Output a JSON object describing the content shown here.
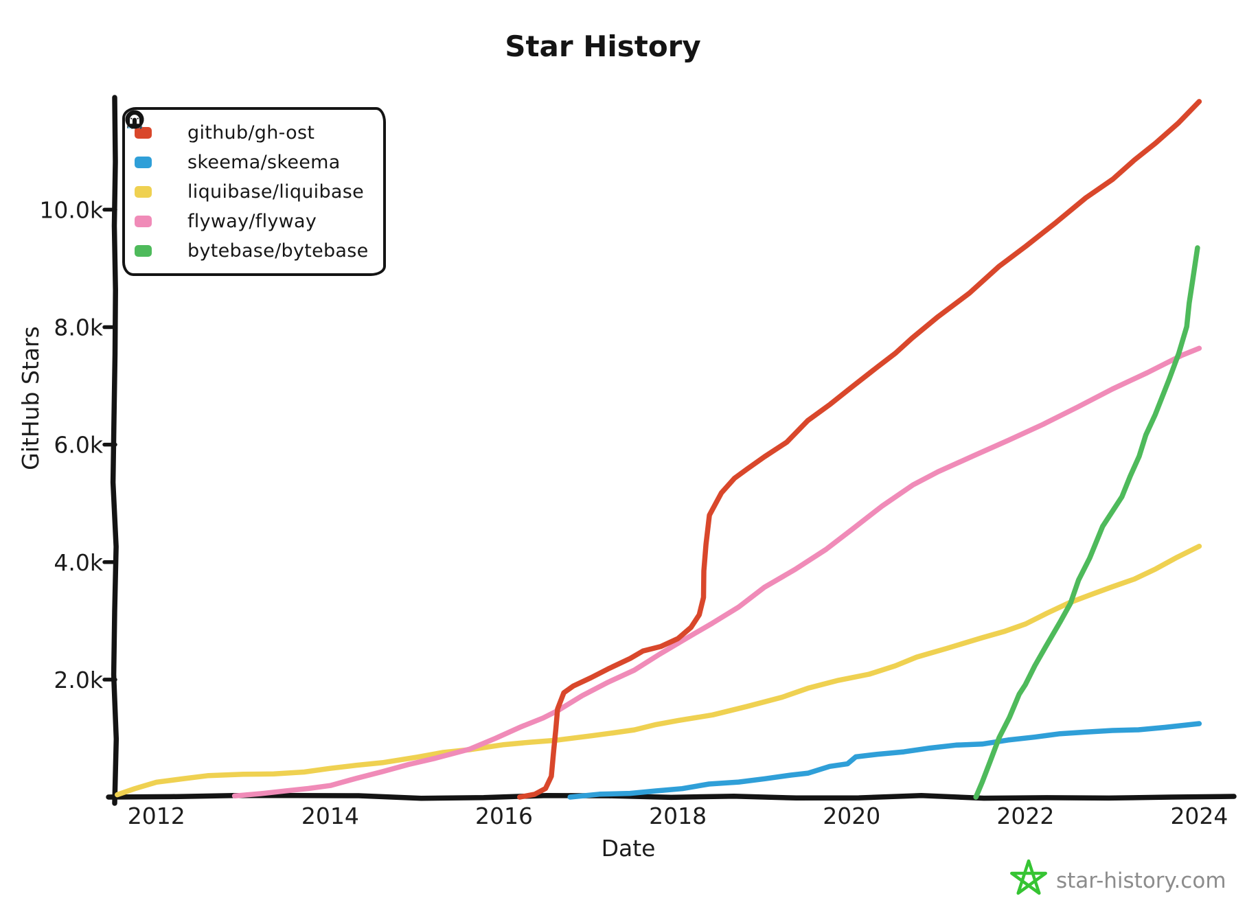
{
  "page": {
    "background": "#ffffff"
  },
  "watermark": {
    "text": "star-history.com",
    "star_color": "#36c433",
    "text_color": "#8c8c8c"
  },
  "legend": {
    "items": [
      {
        "label": "github/gh-ost",
        "icon": "github-icon"
      },
      {
        "label": "skeema/skeema",
        "icon": "skeema-icon"
      },
      {
        "label": "liquibase/liquibase",
        "icon": "liquibase-icon"
      },
      {
        "label": "flyway/flyway",
        "icon": "flyway-icon"
      },
      {
        "label": "bytebase/bytebase",
        "icon": "bytebase-icon"
      }
    ]
  },
  "chart_data": {
    "type": "line",
    "title": "Star History",
    "xlabel": "Date",
    "ylabel": "GitHub Stars",
    "xlim": [
      2011.52,
      2024.36
    ],
    "ylim": [
      0,
      12190
    ],
    "grid": false,
    "legend_position": "top-left",
    "x_ticks": [
      {
        "value": 2012,
        "label": "2012"
      },
      {
        "value": 2014,
        "label": "2014"
      },
      {
        "value": 2016,
        "label": "2016"
      },
      {
        "value": 2018,
        "label": "2018"
      },
      {
        "value": 2020,
        "label": "2020"
      },
      {
        "value": 2022,
        "label": "2022"
      },
      {
        "value": 2024,
        "label": "2024"
      }
    ],
    "y_ticks": [
      {
        "value": 2000,
        "label": "2.0k"
      },
      {
        "value": 4000,
        "label": "4.0k"
      },
      {
        "value": 6000,
        "label": "6.0k"
      },
      {
        "value": 8000,
        "label": "8.0k"
      },
      {
        "value": 10000,
        "label": "10.0k"
      }
    ],
    "series": [
      {
        "name": "liquibase/liquibase",
        "color": "#efd151",
        "points": [
          [
            2011.55,
            40
          ],
          [
            2011.75,
            140
          ],
          [
            2012.0,
            260
          ],
          [
            2012.3,
            325
          ],
          [
            2012.6,
            355
          ],
          [
            2013.0,
            390
          ],
          [
            2013.35,
            405
          ],
          [
            2013.7,
            425
          ],
          [
            2014.0,
            480
          ],
          [
            2014.3,
            530
          ],
          [
            2014.6,
            585
          ],
          [
            2015.0,
            685
          ],
          [
            2015.3,
            755
          ],
          [
            2015.6,
            820
          ],
          [
            2016.0,
            905
          ],
          [
            2016.3,
            935
          ],
          [
            2016.6,
            965
          ],
          [
            2017.0,
            1035
          ],
          [
            2017.5,
            1140
          ],
          [
            2018.0,
            1300
          ],
          [
            2018.4,
            1405
          ],
          [
            2018.8,
            1555
          ],
          [
            2019.2,
            1705
          ],
          [
            2019.5,
            1845
          ],
          [
            2019.85,
            1975
          ],
          [
            2020.2,
            2105
          ],
          [
            2020.5,
            2245
          ],
          [
            2020.75,
            2375
          ],
          [
            2021.1,
            2525
          ],
          [
            2021.5,
            2705
          ],
          [
            2022.0,
            2955
          ],
          [
            2022.5,
            3300
          ],
          [
            2023.0,
            3565
          ],
          [
            2023.5,
            3880
          ],
          [
            2024.0,
            4270
          ]
        ]
      },
      {
        "name": "flyway/flyway",
        "color": "#f08bb8",
        "points": [
          [
            2012.9,
            20
          ],
          [
            2013.2,
            55
          ],
          [
            2013.5,
            95
          ],
          [
            2013.75,
            135
          ],
          [
            2014.0,
            205
          ],
          [
            2014.3,
            315
          ],
          [
            2014.6,
            445
          ],
          [
            2014.9,
            565
          ],
          [
            2015.2,
            665
          ],
          [
            2015.6,
            825
          ],
          [
            2015.9,
            1005
          ],
          [
            2016.2,
            1185
          ],
          [
            2016.45,
            1345
          ],
          [
            2016.62,
            1490
          ],
          [
            2016.9,
            1725
          ],
          [
            2017.2,
            1955
          ],
          [
            2017.5,
            2155
          ],
          [
            2017.8,
            2425
          ],
          [
            2018.1,
            2705
          ],
          [
            2018.4,
            2955
          ],
          [
            2018.7,
            3235
          ],
          [
            2019.0,
            3565
          ],
          [
            2019.35,
            3875
          ],
          [
            2019.7,
            4225
          ],
          [
            2020.0,
            4565
          ],
          [
            2020.35,
            4945
          ],
          [
            2020.7,
            5325
          ],
          [
            2021.0,
            5525
          ],
          [
            2021.4,
            5805
          ],
          [
            2021.8,
            6085
          ],
          [
            2022.2,
            6355
          ],
          [
            2022.6,
            6625
          ],
          [
            2023.0,
            6945
          ],
          [
            2023.4,
            7235
          ],
          [
            2023.8,
            7520
          ],
          [
            2024.0,
            7640
          ]
        ]
      },
      {
        "name": "github/gh-ost",
        "color": "#d9472b",
        "points": [
          [
            2016.18,
            0
          ],
          [
            2016.35,
            60
          ],
          [
            2016.48,
            140
          ],
          [
            2016.55,
            350
          ],
          [
            2016.58,
            800
          ],
          [
            2016.62,
            1500
          ],
          [
            2016.68,
            1780
          ],
          [
            2016.8,
            1890
          ],
          [
            2017.0,
            2030
          ],
          [
            2017.2,
            2170
          ],
          [
            2017.45,
            2370
          ],
          [
            2017.6,
            2480
          ],
          [
            2017.8,
            2570
          ],
          [
            2018.0,
            2700
          ],
          [
            2018.15,
            2890
          ],
          [
            2018.25,
            3100
          ],
          [
            2018.29,
            3400
          ],
          [
            2018.32,
            4300
          ],
          [
            2018.36,
            4800
          ],
          [
            2018.5,
            5180
          ],
          [
            2018.65,
            5430
          ],
          [
            2018.8,
            5590
          ],
          [
            2019.0,
            5790
          ],
          [
            2019.25,
            6050
          ],
          [
            2019.5,
            6400
          ],
          [
            2019.75,
            6700
          ],
          [
            2020.0,
            6970
          ],
          [
            2020.3,
            7320
          ],
          [
            2020.7,
            7810
          ],
          [
            2021.0,
            8170
          ],
          [
            2021.35,
            8590
          ],
          [
            2021.7,
            9020
          ],
          [
            2022.0,
            9390
          ],
          [
            2022.35,
            9790
          ],
          [
            2022.7,
            10190
          ],
          [
            2023.0,
            10530
          ],
          [
            2023.25,
            10840
          ],
          [
            2023.5,
            11130
          ],
          [
            2023.75,
            11480
          ],
          [
            2024.0,
            11840
          ]
        ]
      },
      {
        "name": "skeema/skeema",
        "color": "#2f9fd8",
        "points": [
          [
            2016.76,
            0
          ],
          [
            2017.1,
            35
          ],
          [
            2017.45,
            70
          ],
          [
            2017.75,
            105
          ],
          [
            2018.05,
            150
          ],
          [
            2018.36,
            210
          ],
          [
            2018.7,
            265
          ],
          [
            2019.0,
            325
          ],
          [
            2019.3,
            380
          ],
          [
            2019.5,
            420
          ],
          [
            2019.75,
            510
          ],
          [
            2019.95,
            575
          ],
          [
            2020.05,
            680
          ],
          [
            2020.3,
            725
          ],
          [
            2020.6,
            775
          ],
          [
            2020.9,
            830
          ],
          [
            2021.2,
            870
          ],
          [
            2021.5,
            915
          ],
          [
            2021.8,
            965
          ],
          [
            2022.1,
            1030
          ],
          [
            2022.4,
            1065
          ],
          [
            2022.7,
            1100
          ],
          [
            2023.0,
            1135
          ],
          [
            2023.3,
            1160
          ],
          [
            2023.6,
            1200
          ],
          [
            2024.0,
            1250
          ]
        ]
      },
      {
        "name": "bytebase/bytebase",
        "color": "#4eba5b",
        "points": [
          [
            2021.43,
            0
          ],
          [
            2021.5,
            260
          ],
          [
            2021.6,
            610
          ],
          [
            2021.7,
            1010
          ],
          [
            2021.81,
            1360
          ],
          [
            2021.92,
            1755
          ],
          [
            2022.0,
            1915
          ],
          [
            2022.22,
            2555
          ],
          [
            2022.4,
            3000
          ],
          [
            2022.51,
            3305
          ],
          [
            2022.73,
            4075
          ],
          [
            2022.89,
            4605
          ],
          [
            2023.11,
            5115
          ],
          [
            2023.3,
            5805
          ],
          [
            2023.49,
            6515
          ],
          [
            2023.65,
            7105
          ],
          [
            2023.77,
            7545
          ],
          [
            2023.85,
            8010
          ],
          [
            2023.92,
            8810
          ],
          [
            2023.98,
            9350
          ]
        ]
      }
    ]
  }
}
